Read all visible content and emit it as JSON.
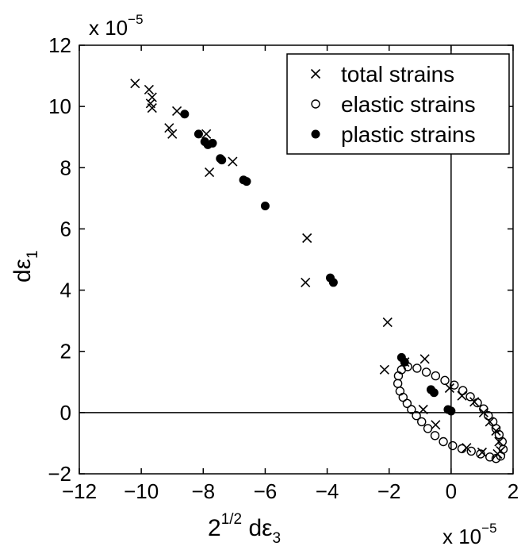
{
  "chart_data": {
    "type": "scatter",
    "title": "",
    "x_multiplier_label": {
      "base": "x 10",
      "exponent": "−5"
    },
    "y_multiplier_label": {
      "base": "x 10",
      "exponent": "−5"
    },
    "xlabel": {
      "prefix": "2",
      "sup": "1/2",
      "mid": " dε",
      "sub": "3"
    },
    "ylabel": {
      "main": "dε",
      "sub": "1"
    },
    "xlim": [
      -12,
      2
    ],
    "ylim": [
      -2,
      12
    ],
    "xticks": [
      -12,
      -10,
      -8,
      -6,
      -4,
      -2,
      0,
      2
    ],
    "xtick_labels": [
      "−12",
      "−10",
      "−8",
      "−6",
      "−4",
      "−2",
      "0",
      "2"
    ],
    "yticks": [
      -2,
      0,
      2,
      4,
      6,
      8,
      10,
      12
    ],
    "ytick_labels": [
      "−2",
      "0",
      "2",
      "4",
      "6",
      "8",
      "10",
      "12"
    ],
    "grid": false,
    "zero_lines": true,
    "legend_position": "top-right",
    "series": [
      {
        "name": "total strains",
        "marker": "x",
        "points": [
          [
            -10.2,
            10.75
          ],
          [
            -9.75,
            10.55
          ],
          [
            -9.65,
            10.3
          ],
          [
            -9.7,
            10.1
          ],
          [
            -9.65,
            9.95
          ],
          [
            -8.85,
            9.85
          ],
          [
            -9.1,
            9.3
          ],
          [
            -9.0,
            9.1
          ],
          [
            -7.9,
            9.1
          ],
          [
            -7.8,
            7.85
          ],
          [
            -7.05,
            8.2
          ],
          [
            -4.65,
            5.7
          ],
          [
            -4.7,
            4.25
          ],
          [
            -2.05,
            2.95
          ],
          [
            -2.15,
            1.4
          ],
          [
            -1.5,
            1.65
          ],
          [
            -0.85,
            1.75
          ],
          [
            -0.05,
            0.8
          ],
          [
            0.35,
            0.55
          ],
          [
            0.75,
            0.35
          ],
          [
            1.05,
            0.0
          ],
          [
            1.25,
            -0.3
          ],
          [
            1.45,
            -0.6
          ],
          [
            1.55,
            -0.95
          ],
          [
            1.6,
            -1.25
          ],
          [
            1.5,
            -1.35
          ],
          [
            1.0,
            -1.3
          ],
          [
            0.5,
            -1.15
          ],
          [
            -0.5,
            -0.4
          ],
          [
            -0.9,
            0.1
          ]
        ]
      },
      {
        "name": "elastic strains",
        "marker": "o",
        "points": [
          [
            -1.7,
            1.2
          ],
          [
            -1.72,
            0.95
          ],
          [
            -1.65,
            0.7
          ],
          [
            -1.55,
            0.5
          ],
          [
            -1.42,
            0.3
          ],
          [
            -1.28,
            0.1
          ],
          [
            -1.12,
            -0.1
          ],
          [
            -0.95,
            -0.3
          ],
          [
            -0.75,
            -0.52
          ],
          [
            -0.52,
            -0.75
          ],
          [
            -0.25,
            -0.95
          ],
          [
            0.05,
            -1.08
          ],
          [
            0.35,
            -1.18
          ],
          [
            0.65,
            -1.26
          ],
          [
            0.95,
            -1.35
          ],
          [
            1.25,
            -1.45
          ],
          [
            1.45,
            -1.5
          ],
          [
            1.6,
            -1.42
          ],
          [
            1.68,
            -1.2
          ],
          [
            1.65,
            -0.95
          ],
          [
            1.55,
            -0.72
          ],
          [
            1.45,
            -0.52
          ],
          [
            1.35,
            -0.3
          ],
          [
            1.2,
            -0.1
          ],
          [
            1.05,
            0.12
          ],
          [
            0.85,
            0.32
          ],
          [
            0.62,
            0.52
          ],
          [
            0.38,
            0.72
          ],
          [
            0.1,
            0.9
          ],
          [
            -0.2,
            1.05
          ],
          [
            -0.5,
            1.2
          ],
          [
            -0.8,
            1.32
          ],
          [
            -1.1,
            1.45
          ],
          [
            -1.4,
            1.5
          ],
          [
            -1.6,
            1.4
          ]
        ]
      },
      {
        "name": "plastic strains",
        "marker": "filled-circle",
        "points": [
          [
            -8.6,
            9.75
          ],
          [
            -8.15,
            9.1
          ],
          [
            -7.95,
            8.85
          ],
          [
            -7.85,
            8.75
          ],
          [
            -7.7,
            8.8
          ],
          [
            -7.45,
            8.3
          ],
          [
            -7.4,
            8.25
          ],
          [
            -6.7,
            7.6
          ],
          [
            -6.6,
            7.55
          ],
          [
            -6.0,
            6.75
          ],
          [
            -3.9,
            4.4
          ],
          [
            -3.8,
            4.25
          ],
          [
            -1.6,
            1.8
          ],
          [
            -1.5,
            1.65
          ],
          [
            -0.65,
            0.75
          ],
          [
            -0.55,
            0.65
          ],
          [
            -0.1,
            0.1
          ],
          [
            0.0,
            0.05
          ]
        ]
      }
    ]
  }
}
